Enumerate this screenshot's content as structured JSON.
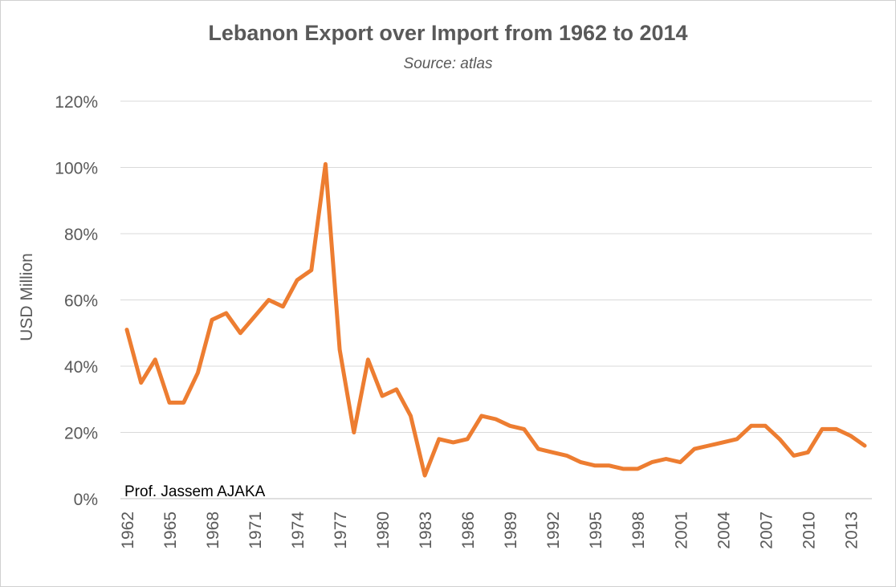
{
  "chart_data": {
    "type": "line",
    "title": "Lebanon Export over Import from 1962 to 2014",
    "subtitle": "Source: atlas",
    "ylabel": "USD Million",
    "xlabel": "",
    "ylim": [
      0,
      120
    ],
    "y_ticks": [
      "0%",
      "20%",
      "40%",
      "60%",
      "80%",
      "100%",
      "120%"
    ],
    "x_tick_labels": [
      "1962",
      "1965",
      "1968",
      "1971",
      "1974",
      "1977",
      "1980",
      "1983",
      "1986",
      "1989",
      "1992",
      "1995",
      "1998",
      "2001",
      "2004",
      "2007",
      "2010",
      "2013"
    ],
    "grid": true,
    "line_color": "#ED7D31",
    "series": [
      {
        "x": [
          1962,
          1963,
          1964,
          1965,
          1966,
          1967,
          1968,
          1969,
          1970,
          1971,
          1972,
          1973,
          1974,
          1975,
          1976,
          1977,
          1978,
          1979,
          1980,
          1981,
          1982,
          1983,
          1984,
          1985,
          1986,
          1987,
          1988,
          1989,
          1990,
          1991,
          1992,
          1993,
          1994,
          1995,
          1996,
          1997,
          1998,
          1999,
          2000,
          2001,
          2002,
          2003,
          2004,
          2005,
          2006,
          2007,
          2008,
          2009,
          2010,
          2011,
          2012,
          2013,
          2014
        ],
        "values": [
          51,
          35,
          42,
          29,
          29,
          38,
          54,
          56,
          50,
          55,
          60,
          58,
          66,
          69,
          101,
          45,
          20,
          42,
          31,
          33,
          25,
          7,
          18,
          17,
          18,
          25,
          24,
          22,
          21,
          15,
          14,
          13,
          11,
          10,
          10,
          9,
          9,
          11,
          12,
          11,
          15,
          16,
          17,
          18,
          22,
          22,
          18,
          13,
          14,
          21,
          21,
          19,
          16
        ]
      }
    ]
  },
  "annotation": "Prof. Jassem AJAKA"
}
